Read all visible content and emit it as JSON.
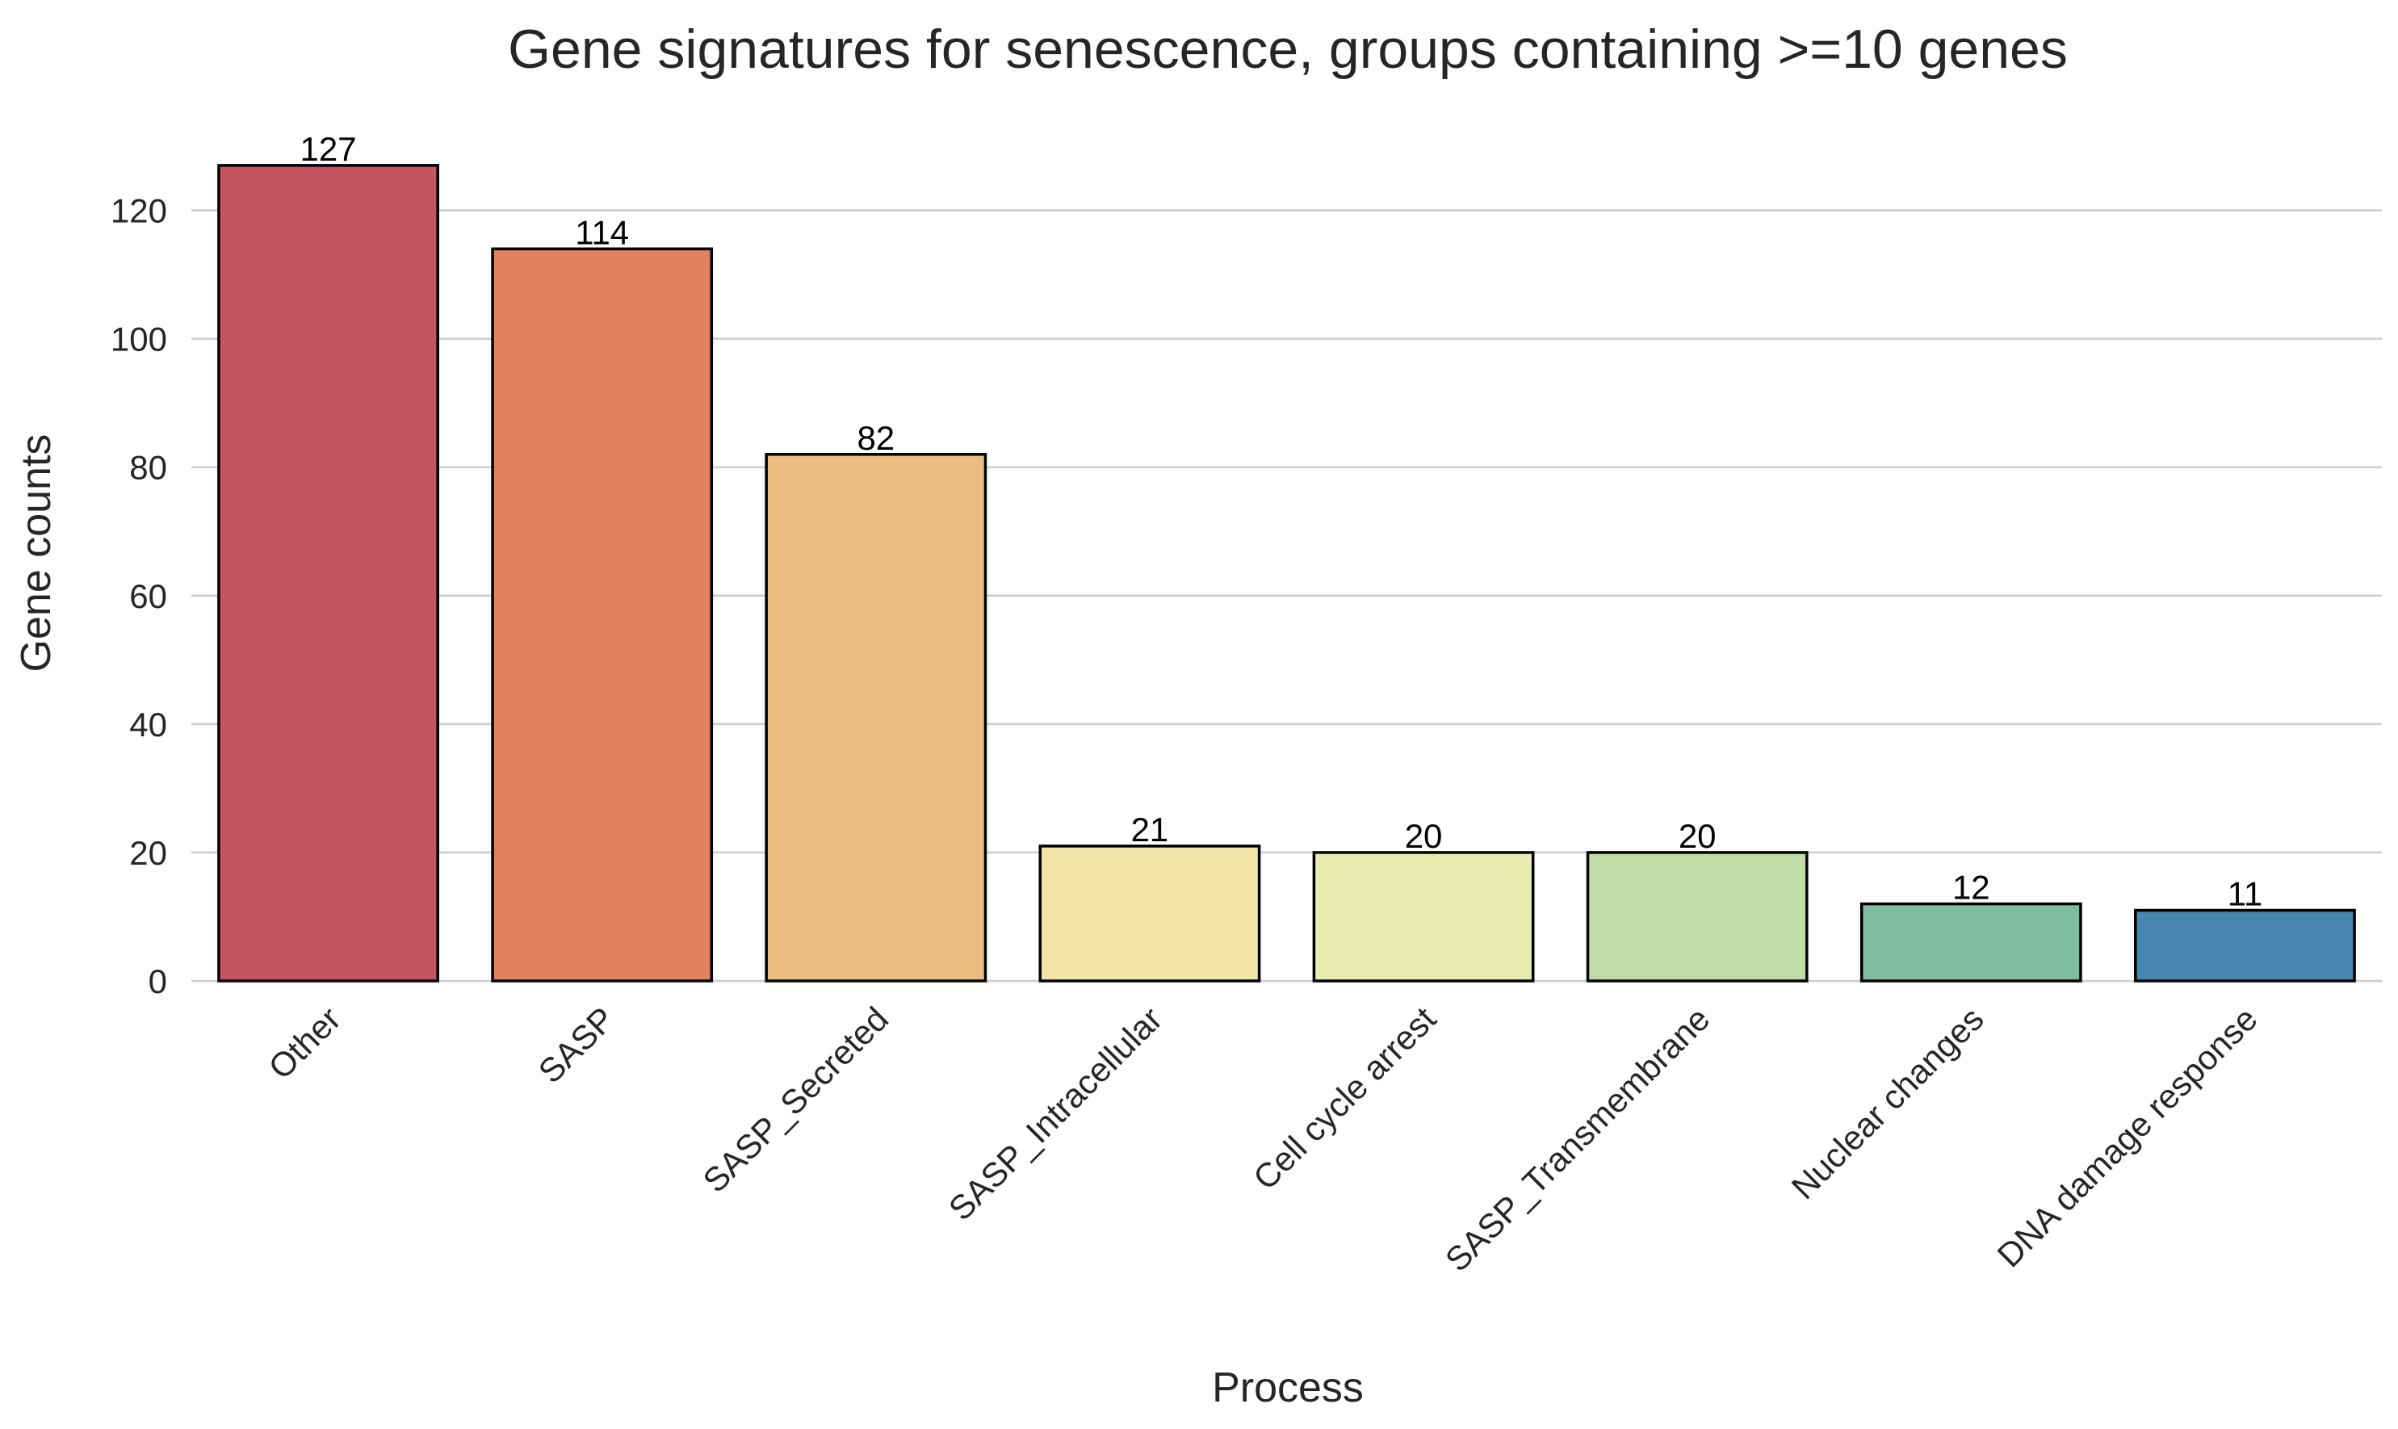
{
  "chart_data": {
    "type": "bar",
    "title": "Gene signatures for senescence, groups containing >=10 genes",
    "xlabel": "Process",
    "ylabel": "Gene counts",
    "categories": [
      "Other",
      "SASP",
      "SASP_Secreted",
      "SASP_Intracellular",
      "Cell cycle arrest",
      "SASP_Transmembrane",
      "Nuclear changes",
      "DNA damage response"
    ],
    "values": [
      127,
      114,
      82,
      21,
      20,
      20,
      12,
      11
    ],
    "colors": [
      "#c4545f",
      "#e08260",
      "#eabc7f",
      "#f3e5a7",
      "#e8eeb0",
      "#bfdca7",
      "#7fbca3",
      "#4787af"
    ],
    "ylim": [
      0,
      130
    ],
    "yticks": [
      0,
      20,
      40,
      60,
      80,
      100,
      120
    ],
    "grid": "horizontal",
    "legend": "none"
  }
}
